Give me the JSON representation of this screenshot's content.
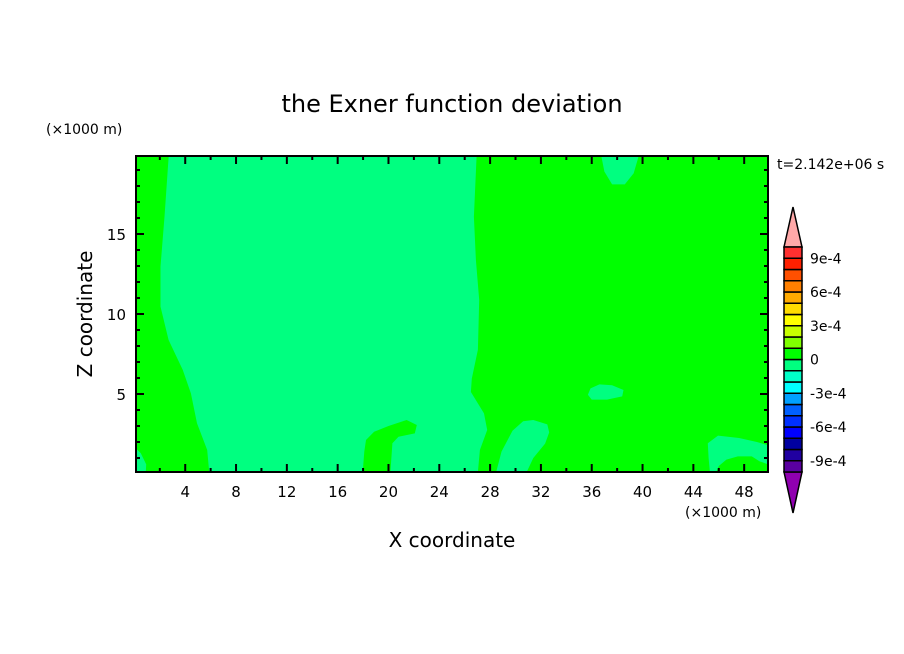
{
  "chart_data": {
    "type": "heatmap",
    "subtype": "filled-contour",
    "title": "the Exner function deviation",
    "xlabel": "X coordinate",
    "ylabel": "Z coordinate",
    "x_unit_label": "(×1000 m)",
    "y_unit_label": "(×1000 m)",
    "time_label": "t=2.142e+06 s",
    "xlim": [
      0.125,
      49.875
    ],
    "ylim": [
      0.125,
      19.875
    ],
    "x_major_ticks": [
      4,
      8,
      12,
      16,
      20,
      24,
      28,
      32,
      36,
      40,
      44,
      48
    ],
    "x_minor_step": 2,
    "y_major_ticks": [
      5,
      10,
      15
    ],
    "y_minor_step": 1,
    "grid": false,
    "colorbar": {
      "placement": "right",
      "levels": [
        -0.001,
        -0.0009,
        -0.0008,
        -0.0007,
        -0.0006,
        -0.0005,
        -0.0004,
        -0.0003,
        -0.0002,
        -0.0001,
        0,
        0.0001,
        0.0002,
        0.0003,
        0.0004,
        0.0005,
        0.0006,
        0.0007,
        0.0008,
        0.0009,
        0.001
      ],
      "colors": [
        "#5a00a0",
        "#2000a0",
        "#0000a0",
        "#0000ff",
        "#0030ff",
        "#0060ff",
        "#00a0ff",
        "#00ffff",
        "#00ffc8",
        "#00ff80",
        "#00ff00",
        "#80ff00",
        "#c8ff00",
        "#ffff00",
        "#ffdc00",
        "#ffaa00",
        "#ff8000",
        "#ff5000",
        "#ff2000",
        "#ff3030"
      ],
      "under_color": "#9000b0",
      "over_color": "#ffa8a8",
      "tick_labels": [
        {
          "value": 0.0009,
          "label": "9e-4"
        },
        {
          "value": 0.0006,
          "label": "6e-4"
        },
        {
          "value": 0.0003,
          "label": "3e-4"
        },
        {
          "value": 0,
          "label": "0"
        },
        {
          "value": -0.0003,
          "label": "-3e-4"
        },
        {
          "value": -0.0006,
          "label": "-6e-4"
        },
        {
          "value": -0.0009,
          "label": "-9e-4"
        }
      ]
    },
    "background_band": {
      "range": [
        0,
        0.0001
      ],
      "color": "#00ff00"
    },
    "regions": [
      {
        "range": [
          -0.0001,
          0
        ],
        "color": "#00ff80",
        "points": [
          [
            2.7,
            19.875
          ],
          [
            2.37,
            16.08
          ],
          [
            2.05,
            12.96
          ],
          [
            2.05,
            10.46
          ],
          [
            2.69,
            8.375
          ],
          [
            3.81,
            6.5
          ],
          [
            4.45,
            5.04
          ],
          [
            4.93,
            3.17
          ],
          [
            5.73,
            1.5
          ],
          [
            5.89,
            0.125
          ],
          [
            17.97,
            0.125
          ],
          [
            18.1,
            1.4
          ],
          [
            18.23,
            2.125
          ],
          [
            18.87,
            2.64
          ],
          [
            20.0,
            3.0
          ],
          [
            21.43,
            3.375
          ],
          [
            22.23,
            3.06
          ],
          [
            22.07,
            2.54
          ],
          [
            20.79,
            2.33
          ],
          [
            20.31,
            1.92
          ],
          [
            20.15,
            0.125
          ],
          [
            27.04,
            0.125
          ],
          [
            27.2,
            1.5
          ],
          [
            27.77,
            2.75
          ],
          [
            27.52,
            3.79
          ],
          [
            26.49,
            5.125
          ],
          [
            26.56,
            5.96
          ],
          [
            27.04,
            7.77
          ],
          [
            27.14,
            10.875
          ],
          [
            26.88,
            13.375
          ],
          [
            26.72,
            16.08
          ],
          [
            26.94,
            19.875
          ]
        ]
      },
      {
        "range": [
          -0.0001,
          0
        ],
        "color": "#00ff80",
        "points": [
          [
            36.75,
            19.875
          ],
          [
            37.0,
            18.9
          ],
          [
            37.6,
            18.1
          ],
          [
            38.6,
            18.1
          ],
          [
            39.3,
            18.8
          ],
          [
            39.7,
            19.875
          ]
        ]
      },
      {
        "range": [
          -0.0001,
          0
        ],
        "color": "#00ff80",
        "points": [
          [
            35.7,
            4.95
          ],
          [
            35.9,
            5.35
          ],
          [
            36.6,
            5.6
          ],
          [
            37.6,
            5.55
          ],
          [
            38.5,
            5.25
          ],
          [
            38.4,
            4.85
          ],
          [
            37.2,
            4.65
          ],
          [
            36.0,
            4.65
          ]
        ]
      },
      {
        "range": [
          -0.0001,
          0
        ],
        "color": "#00ff80",
        "points": [
          [
            28.48,
            0.125
          ],
          [
            28.9,
            1.4
          ],
          [
            29.76,
            2.7
          ],
          [
            30.6,
            3.3
          ],
          [
            31.4,
            3.375
          ],
          [
            32.5,
            3.1
          ],
          [
            32.65,
            2.6
          ],
          [
            32.33,
            1.9
          ],
          [
            31.4,
            1.0
          ],
          [
            30.88,
            0.125
          ]
        ]
      },
      {
        "range": [
          -0.0001,
          0
        ],
        "color": "#00ff80",
        "points": [
          [
            45.14,
            1.92
          ],
          [
            45.94,
            2.4
          ],
          [
            47.6,
            2.25
          ],
          [
            49.0,
            2.0
          ],
          [
            49.875,
            1.8
          ],
          [
            49.875,
            0.6
          ],
          [
            49.2,
            0.8
          ],
          [
            48.6,
            1.1
          ],
          [
            47.5,
            1.1
          ],
          [
            46.6,
            0.9
          ],
          [
            46.0,
            0.5
          ],
          [
            45.8,
            0.125
          ],
          [
            45.3,
            0.125
          ],
          [
            45.2,
            1.0
          ]
        ]
      },
      {
        "range": [
          -0.0001,
          0
        ],
        "color": "#00ff80",
        "points": [
          [
            0.125,
            0.125
          ],
          [
            0.125,
            1.6
          ],
          [
            0.5,
            1.3
          ],
          [
            0.93,
            0.6
          ],
          [
            0.9,
            0.125
          ]
        ]
      }
    ]
  }
}
